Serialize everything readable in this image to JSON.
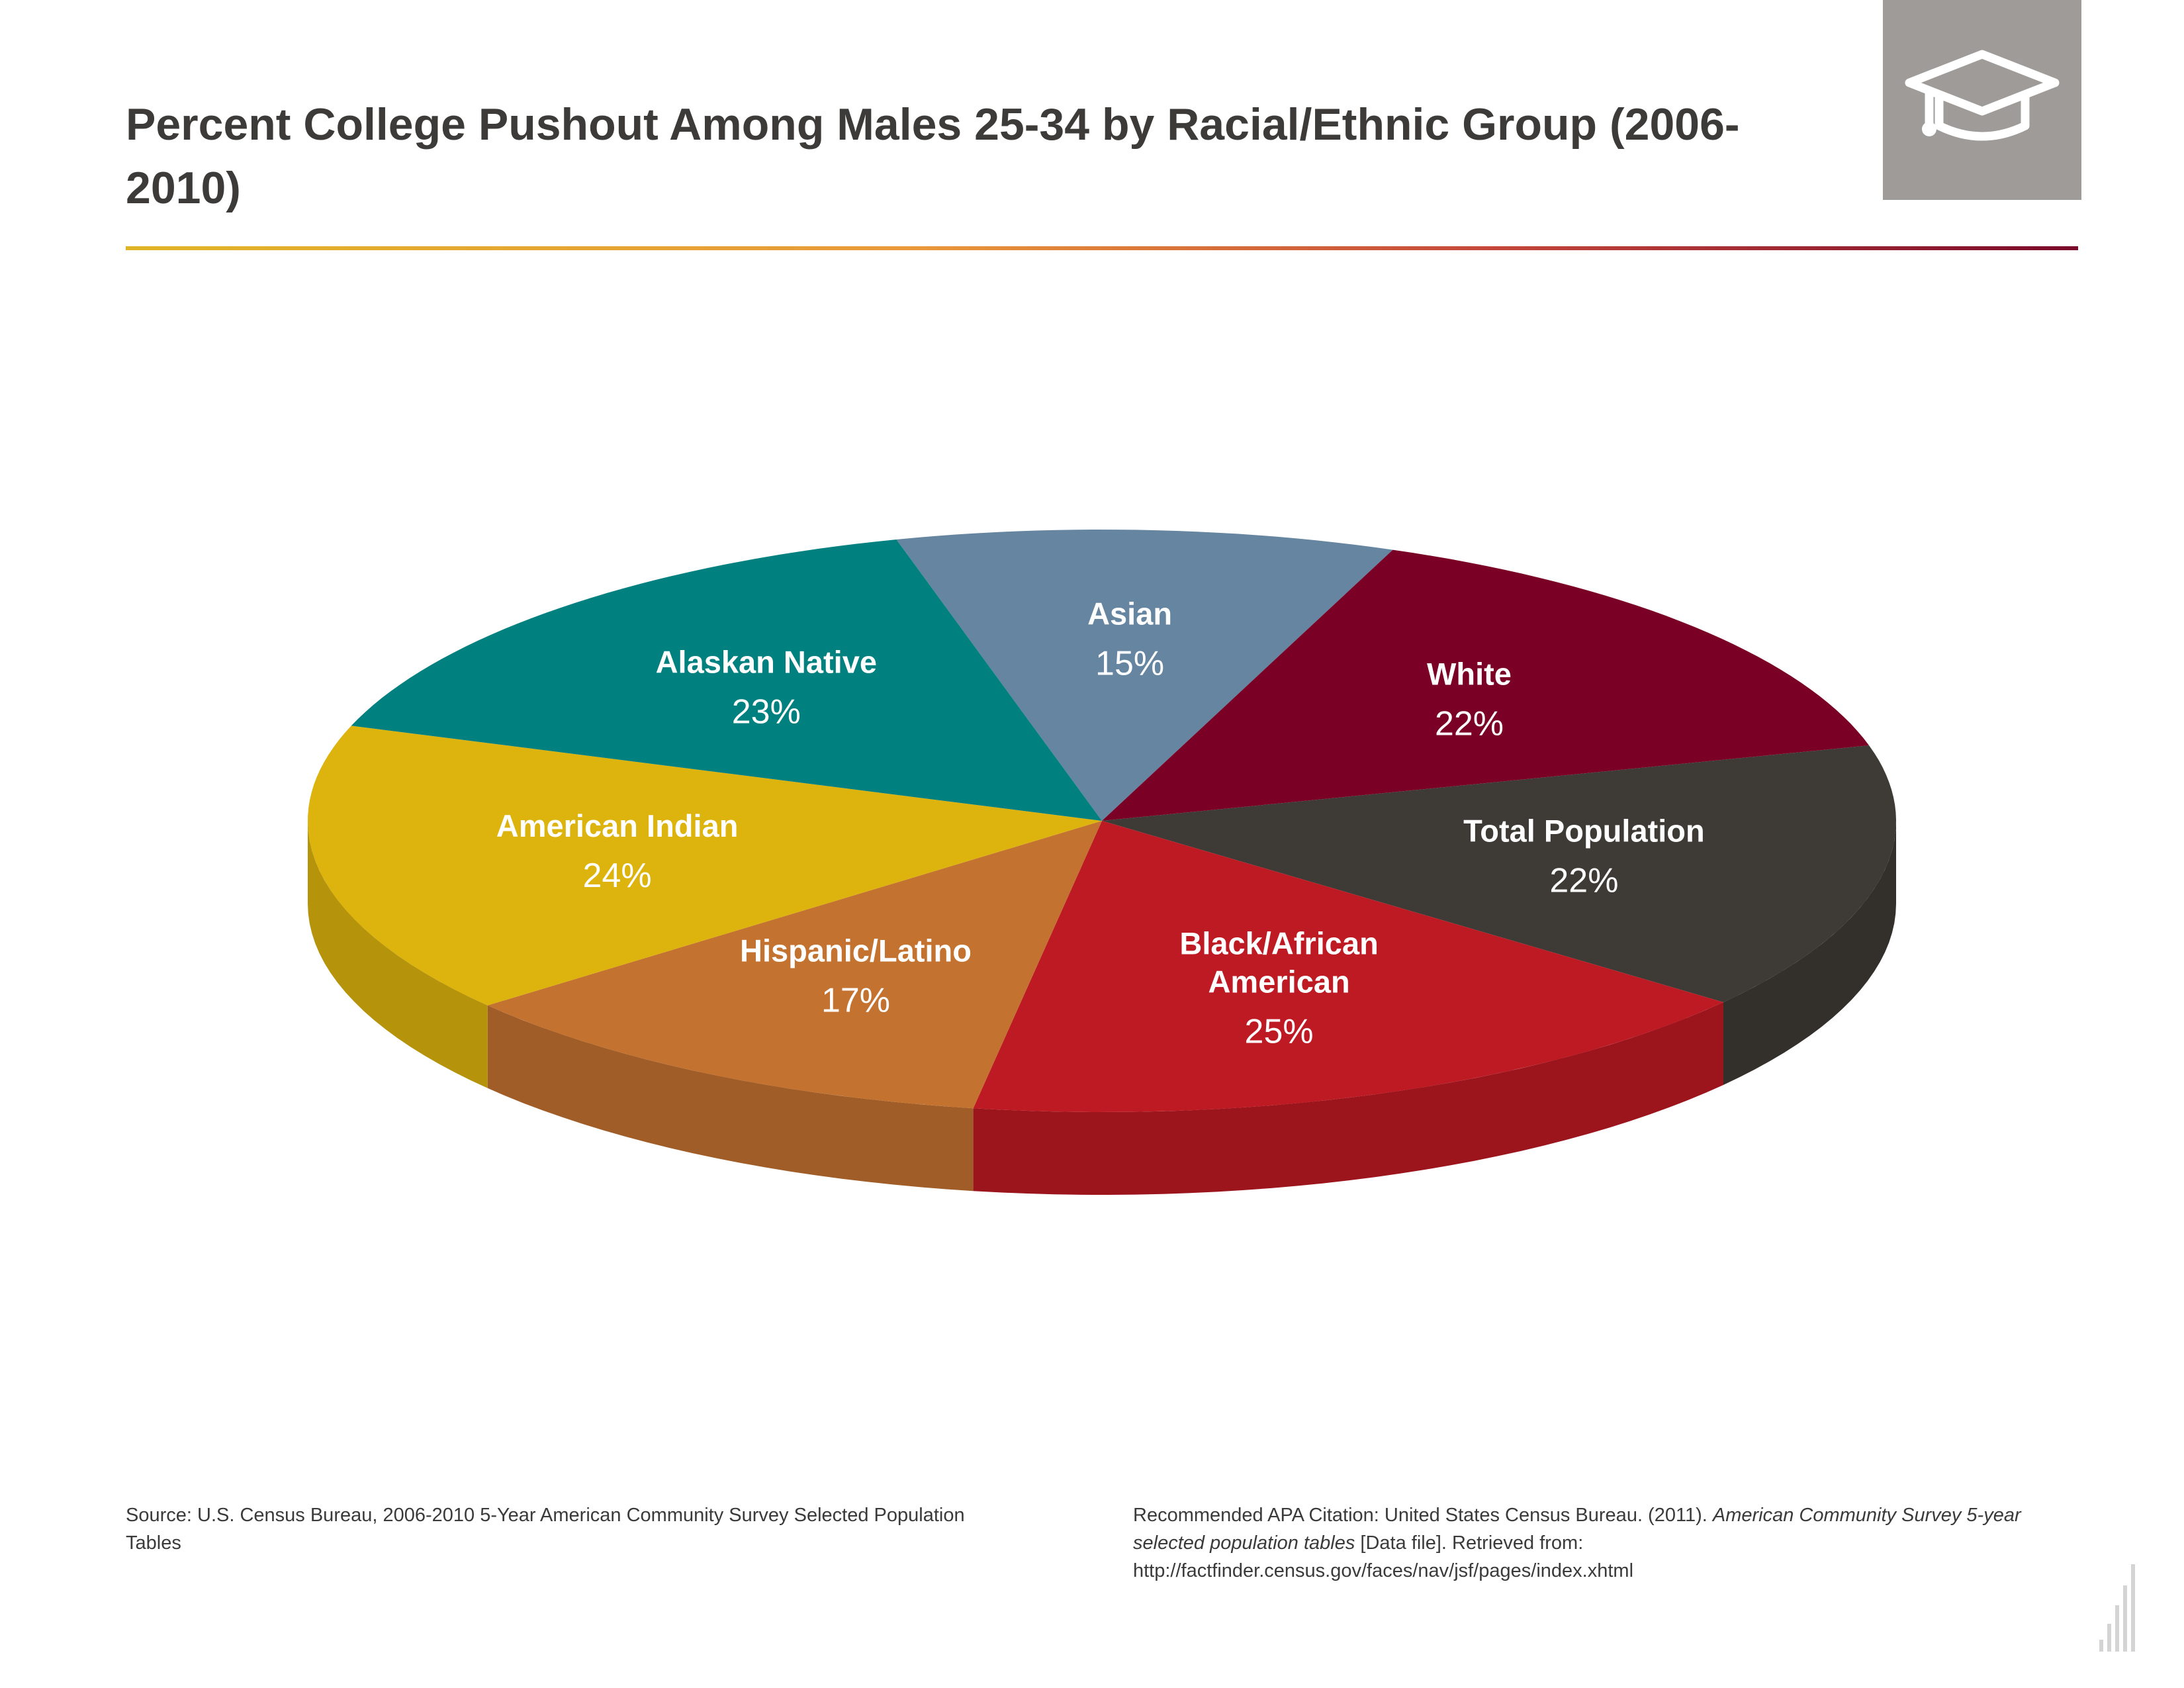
{
  "title": "Percent College Pushout Among Males 25-34 by Racial/Ethnic Group (2006-2010)",
  "icon": "graduation-cap-icon",
  "chart_data": {
    "type": "pie",
    "title": "Percent College Pushout Among Males 25-34 by Racial/Ethnic Group (2006-2010)",
    "style": "3d-tilted",
    "categories": [
      "Asian",
      "White",
      "Total Population",
      "Black/African American",
      "Hispanic/Latino",
      "American Indian",
      "Alaskan Native"
    ],
    "values": [
      15,
      22,
      22,
      25,
      17,
      24,
      23
    ],
    "value_labels": [
      "15%",
      "22%",
      "22%",
      "25%",
      "17%",
      "24%",
      "23%"
    ],
    "colors": [
      "#6585a0",
      "#7a0026",
      "#3e3a36",
      "#be1a23",
      "#c37230",
      "#ddb30e",
      "#00807f"
    ],
    "slices": [
      {
        "name": "Asian",
        "name_lines": [
          "Asian"
        ],
        "value": 15,
        "label": "15%"
      },
      {
        "name": "White",
        "name_lines": [
          "White"
        ],
        "value": 22,
        "label": "22%"
      },
      {
        "name": "Total Population",
        "name_lines": [
          "Total Population"
        ],
        "value": 22,
        "label": "22%"
      },
      {
        "name": "Black/African American",
        "name_lines": [
          "Black/African",
          "American"
        ],
        "value": 25,
        "label": "25%"
      },
      {
        "name": "Hispanic/Latino",
        "name_lines": [
          "Hispanic/Latino"
        ],
        "value": 17,
        "label": "17%"
      },
      {
        "name": "American Indian",
        "name_lines": [
          "American Indian"
        ],
        "value": 24,
        "label": "24%"
      },
      {
        "name": "Alaskan Native",
        "name_lines": [
          "Alaskan Native"
        ],
        "value": 23,
        "label": "23%"
      }
    ]
  },
  "footer": {
    "source": "Source: U.S. Census Bureau, 2006-2010 5-Year American Community Survey Selected Population Tables",
    "citation_prefix": "Recommended APA Citation: United States Census Bureau. (2011). ",
    "citation_title": "American Community Survey 5-year selected population tables",
    "citation_suffix": " [Data file]. Retrieved from: http://factfinder.census.gov/faces/nav/jsf/pages/index.xhtml"
  },
  "brand_icon": "bar-chart-logo-icon"
}
